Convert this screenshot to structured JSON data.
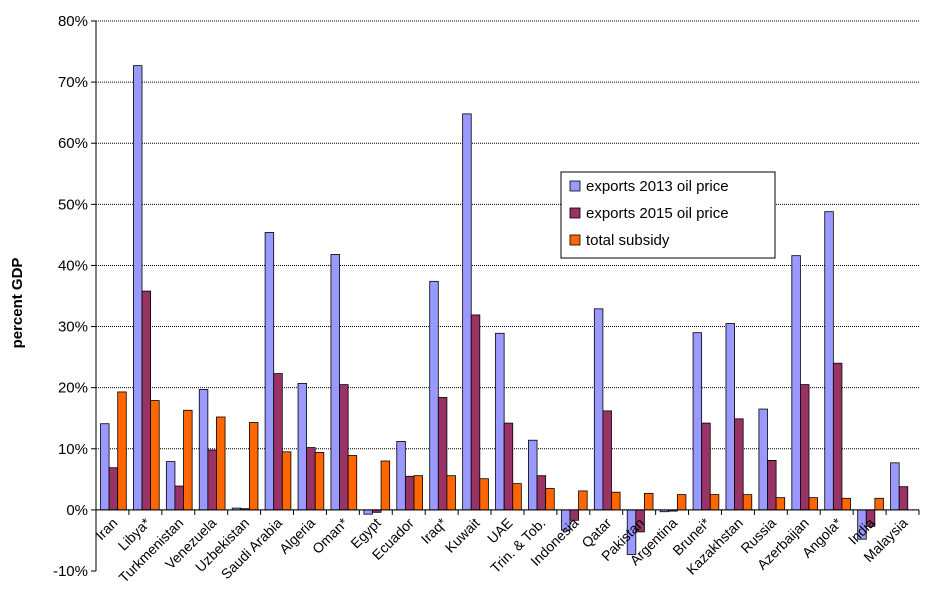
{
  "chart_data": {
    "type": "bar",
    "title": "",
    "xlabel": "",
    "ylabel": "percent GDP",
    "ylim": [
      -10,
      80
    ],
    "yticks": [
      -10,
      0,
      10,
      20,
      30,
      40,
      50,
      60,
      70,
      80
    ],
    "ytick_labels": [
      "-10%",
      "0%",
      "10%",
      "20%",
      "30%",
      "40%",
      "50%",
      "60%",
      "70%",
      "80%"
    ],
    "grid": true,
    "legend_position": "center-right",
    "categories": [
      "Iran",
      "Libya*",
      "Turkmenistan",
      "Venezuela",
      "Uzbekistan",
      "Saudi Arabia",
      "Algeria",
      "Oman*",
      "Egypt",
      "Ecuador",
      "Iraq*",
      "Kuwait",
      "UAE",
      "Trin. & Tob.",
      "Indonesia",
      "Qatar",
      "Pakistan",
      "Argentina",
      "Brunei*",
      "Kazakhstan",
      "Russia",
      "Azerbaijan",
      "Angola*",
      "India",
      "Malaysia"
    ],
    "series": [
      {
        "name": "exports 2013 oil price",
        "color": "#9999ff",
        "values": [
          14.1,
          72.7,
          7.9,
          19.7,
          0.3,
          45.4,
          20.7,
          41.8,
          -0.7,
          11.2,
          37.4,
          64.8,
          28.9,
          11.4,
          -3.3,
          32.9,
          -7.3,
          -0.3,
          29.0,
          30.5,
          16.5,
          41.6,
          48.8,
          -4.8,
          7.7
        ]
      },
      {
        "name": "exports 2015 oil price",
        "color": "#993366",
        "values": [
          6.9,
          35.8,
          3.9,
          9.8,
          0.2,
          22.3,
          10.2,
          20.5,
          -0.4,
          5.5,
          18.4,
          31.9,
          14.2,
          5.6,
          -1.7,
          16.2,
          -3.6,
          -0.2,
          14.2,
          14.9,
          8.1,
          20.5,
          24.0,
          -2.7,
          3.8
        ]
      },
      {
        "name": "total subsidy",
        "color": "#ff6600",
        "values": [
          19.3,
          17.9,
          16.3,
          15.2,
          14.3,
          9.5,
          9.4,
          8.9,
          8.0,
          5.6,
          5.6,
          5.1,
          4.3,
          3.5,
          3.1,
          2.9,
          2.7,
          2.5,
          2.5,
          2.5,
          2.0,
          2.0,
          1.9,
          1.9,
          0
        ]
      }
    ]
  }
}
